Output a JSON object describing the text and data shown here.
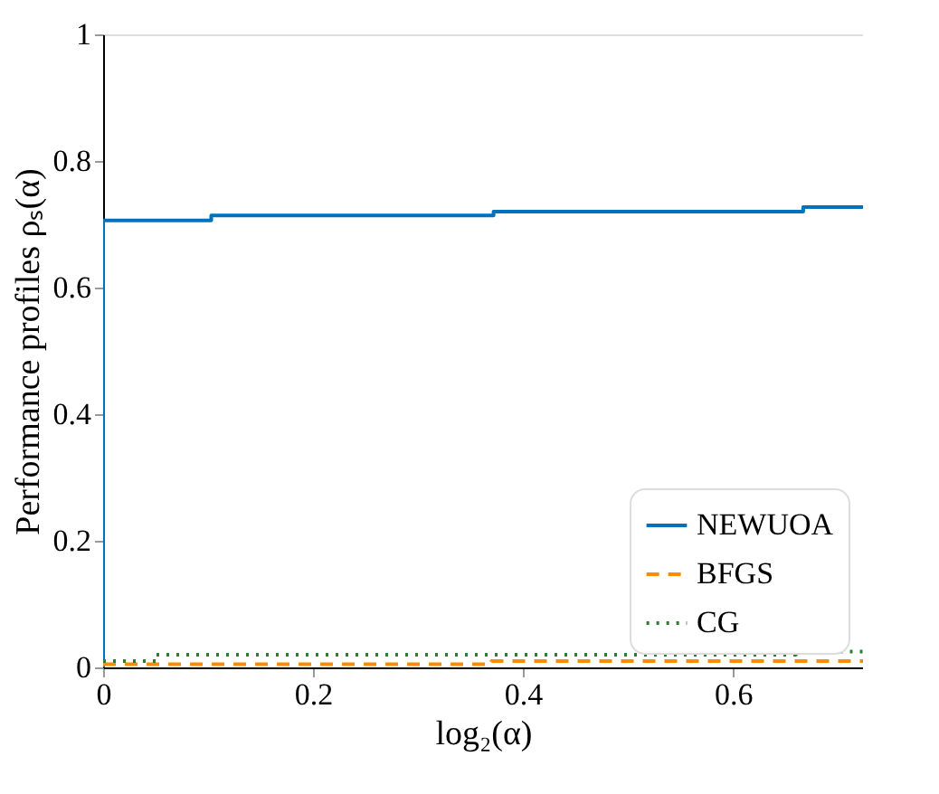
{
  "chart_data": {
    "type": "step",
    "xlabel": "log₂(α)",
    "ylabel": "Performance profiles ρₛ(α)",
    "xlim": [
      0,
      0.724
    ],
    "xticks": [
      0,
      0.2,
      0.4,
      0.6
    ],
    "ylim": [
      0,
      1
    ],
    "yticks": [
      0,
      0.2,
      0.4,
      0.6,
      0.8,
      1
    ],
    "grid": false,
    "legend": "bottom right",
    "marker": "none",
    "series": [
      {
        "name": "NEWUOA",
        "color": "#0072bd",
        "line_style": "solid",
        "x": [
          0,
          0,
          0.103,
          0.372,
          0.667,
          0.724
        ],
        "values": [
          0,
          0.706,
          0.714,
          0.72,
          0.727,
          0.727
        ]
      },
      {
        "name": "BFGS",
        "color": "#ff8c00",
        "line_style": "dashed",
        "x": [
          0,
          0.37,
          0.724
        ],
        "values": [
          0.005,
          0.01,
          0.01
        ]
      },
      {
        "name": "CG",
        "color": "#2e7d32",
        "line_style": "dotted",
        "x": [
          0,
          0.05,
          0.66,
          0.724
        ],
        "values": [
          0.01,
          0.02,
          0.025,
          0.025
        ]
      }
    ]
  }
}
